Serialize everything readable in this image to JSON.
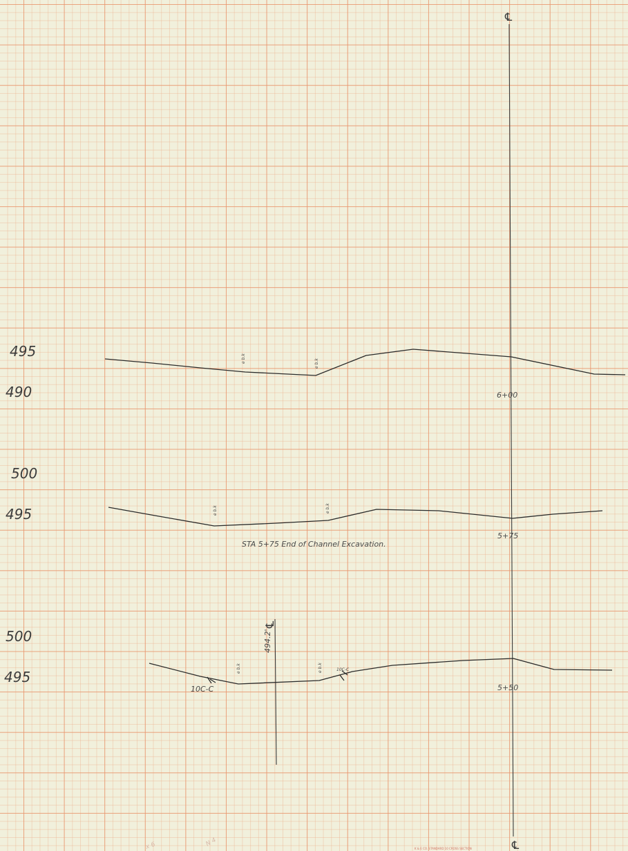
{
  "centerline_symbol": "℄",
  "colors": {
    "paper": "#f1f0dc",
    "grid_major": "#e8966e",
    "grid_minor": "#ecaf8c",
    "ink": "#2a2a2a"
  },
  "sections": [
    {
      "station": "6+00",
      "elev_upper": "495",
      "elev_lower": "490",
      "marks": [
        "e b.k",
        "e b.k"
      ]
    },
    {
      "station": "5+75",
      "elev_upper": "500",
      "elev_lower": "495",
      "marks": [
        "e b.k",
        "e b.k"
      ],
      "note": "STA 5+75 End of Channel Excavation."
    },
    {
      "station": "5+50",
      "elev_upper": "500",
      "elev_lower": "495",
      "marks": [
        "e b.k",
        "e b.k"
      ],
      "annotations": {
        "cl_elev": "494.2'",
        "left_slope": "10C-C",
        "right_slope": "10C-C"
      }
    }
  ],
  "imprint": "K & E CO. STANDARD 10 CROSS SECTION",
  "faint_marks": [
    "x 6",
    "N 4"
  ]
}
